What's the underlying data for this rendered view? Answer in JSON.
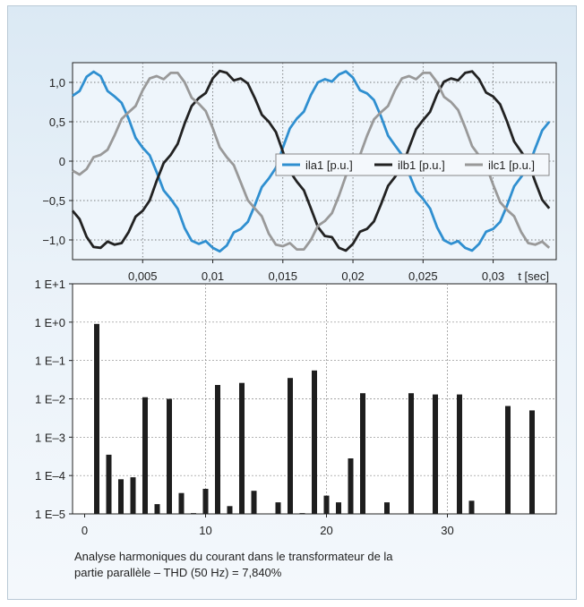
{
  "chart_data": [
    {
      "type": "line",
      "title": "",
      "xlabel": "t [sec]",
      "ylabel": "",
      "xlim": [
        0,
        0.0345
      ],
      "ylim": [
        -1.25,
        1.25
      ],
      "x_ticks": [
        "0,005",
        "0,01",
        "0,015",
        "0,02",
        "0,025",
        "0,03"
      ],
      "y_ticks": [
        "1,0",
        "0,5",
        "0",
        "-0,5",
        "-1,0"
      ],
      "grid": true,
      "legend_position": "right",
      "series": [
        {
          "name": "ila1 [p.u.]",
          "color": "#2f8fd0",
          "x": [
            0,
            0.001,
            0.002,
            0.003,
            0.004,
            0.005,
            0.006,
            0.007,
            0.008,
            0.009,
            0.01,
            0.011,
            0.012,
            0.013,
            0.014,
            0.015,
            0.016,
            0.017,
            0.018,
            0.019,
            0.02,
            0.021,
            0.022,
            0.023,
            0.024,
            0.025,
            0.026,
            0.027,
            0.028,
            0.029,
            0.03,
            0.031,
            0.032,
            0.033,
            0.034
          ],
          "values": [
            0.83,
            1.07,
            1.08,
            0.82,
            0.54,
            0.17,
            -0.14,
            -0.48,
            -0.85,
            -1.05,
            -1.1,
            -1.07,
            -0.86,
            -0.56,
            -0.22,
            0.17,
            0.54,
            0.84,
            1.04,
            1.1,
            1.06,
            0.86,
            0.57,
            0.2,
            -0.16,
            -0.48,
            -0.84,
            -1.05,
            -1.1,
            -1.05,
            -0.86,
            -0.56,
            -0.2,
            0.16,
            0.5
          ]
        },
        {
          "name": "ilb1 [p.u.]",
          "color": "#222222",
          "x": [
            0,
            0.001,
            0.002,
            0.003,
            0.004,
            0.005,
            0.006,
            0.007,
            0.008,
            0.009,
            0.01,
            0.011,
            0.012,
            0.013,
            0.014,
            0.015,
            0.016,
            0.017,
            0.018,
            0.019,
            0.02,
            0.021,
            0.022,
            0.023,
            0.024,
            0.025,
            0.026,
            0.027,
            0.028,
            0.029,
            0.03,
            0.031,
            0.032,
            0.033,
            0.034
          ],
          "values": [
            -0.63,
            -0.96,
            -1.1,
            -1.06,
            -0.9,
            -0.63,
            -0.25,
            0.08,
            0.48,
            0.8,
            1.05,
            1.12,
            1.05,
            0.8,
            0.5,
            0.12,
            -0.26,
            -0.6,
            -0.95,
            -1.1,
            -1.05,
            -0.86,
            -0.55,
            -0.2,
            0.17,
            0.52,
            0.85,
            1.05,
            1.12,
            1.04,
            0.82,
            0.5,
            0.12,
            -0.26,
            -0.6
          ]
        },
        {
          "name": "ilc1 [p.u.]",
          "color": "#999999",
          "x": [
            0,
            0.001,
            0.002,
            0.003,
            0.004,
            0.005,
            0.006,
            0.007,
            0.008,
            0.009,
            0.01,
            0.011,
            0.012,
            0.013,
            0.014,
            0.015,
            0.016,
            0.017,
            0.018,
            0.019,
            0.02,
            0.021,
            0.022,
            0.023,
            0.024,
            0.025,
            0.026,
            0.027,
            0.028,
            0.029,
            0.03,
            0.031,
            0.032,
            0.033,
            0.034
          ],
          "values": [
            -0.12,
            -0.1,
            0.08,
            0.33,
            0.62,
            0.9,
            1.08,
            1.12,
            1.0,
            0.73,
            0.42,
            0.05,
            -0.27,
            -0.6,
            -0.92,
            -1.08,
            -1.12,
            -1.0,
            -0.76,
            -0.44,
            -0.05,
            0.32,
            0.62,
            0.9,
            1.08,
            1.12,
            1.0,
            0.75,
            0.43,
            0.07,
            -0.3,
            -0.62,
            -0.9,
            -1.06,
            -1.1
          ]
        }
      ]
    },
    {
      "type": "bar",
      "title": "",
      "xlabel": "",
      "ylabel": "",
      "yscale": "log",
      "ylim": [
        1e-05,
        10
      ],
      "xlim": [
        -1,
        39
      ],
      "x_ticks": [
        "0",
        "10",
        "20",
        "30"
      ],
      "y_ticks": [
        "1 E+1",
        "1 E+0",
        "1 E–1",
        "1 E–2",
        "1 E–3",
        "1 E–4",
        "1 E–5"
      ],
      "grid": true,
      "categories": [
        1,
        2,
        3,
        4,
        5,
        6,
        7,
        8,
        9,
        10,
        11,
        12,
        13,
        14,
        16,
        17,
        18,
        19,
        20,
        21,
        22,
        23,
        25,
        27,
        29,
        31,
        32,
        35,
        37
      ],
      "values": [
        0.9,
        0.00035,
        8e-05,
        9e-05,
        0.011,
        1.8e-05,
        0.01,
        3.5e-05,
        1.05e-05,
        4.5e-05,
        0.023,
        1.6e-05,
        0.026,
        4e-05,
        2e-05,
        0.035,
        1.05e-05,
        0.055,
        3e-05,
        2e-05,
        0.00028,
        0.014,
        2e-05,
        0.014,
        0.013,
        0.013,
        2.2e-05,
        0.0065,
        0.005
      ]
    }
  ],
  "caption": {
    "line1": "Analyse harmoniques du courant dans le transformateur de la",
    "line2": "partie parallèle – THD (50 Hz) = 7,840%"
  }
}
